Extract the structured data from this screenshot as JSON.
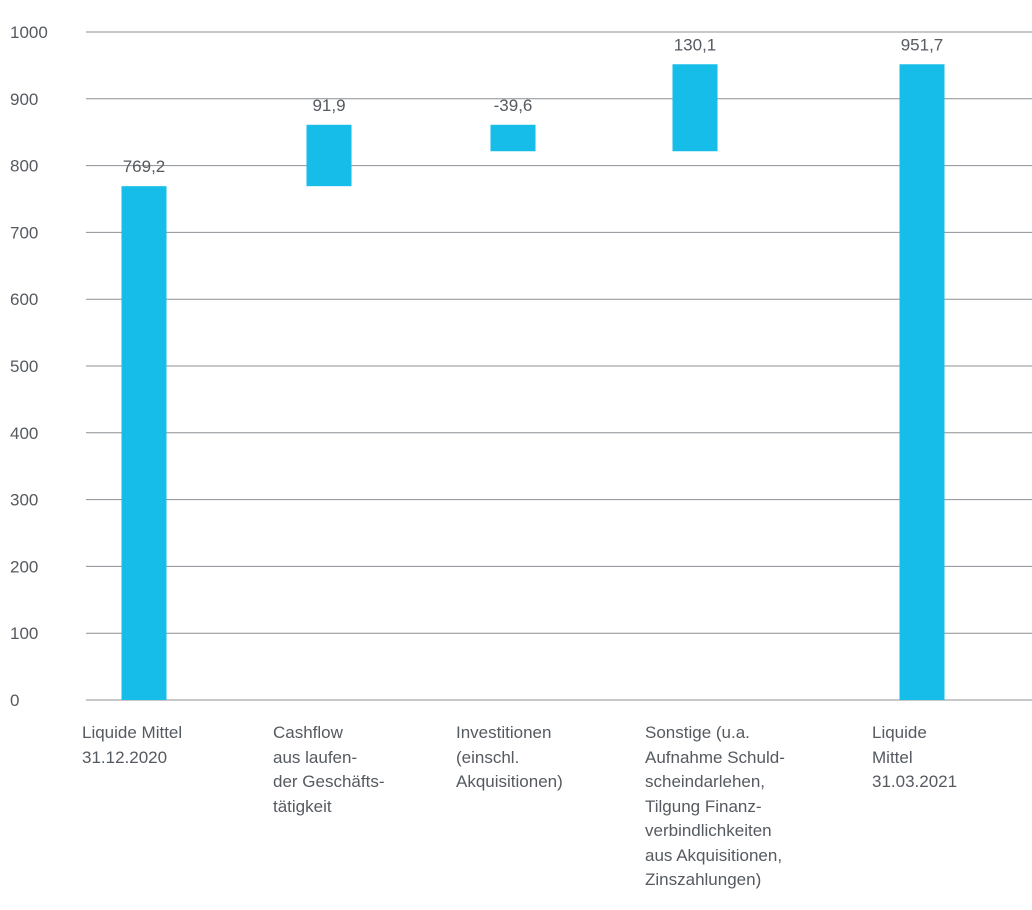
{
  "chart_data": {
    "type": "bar",
    "subtype": "waterfall",
    "ylim": [
      0,
      1000
    ],
    "yticks": [
      0,
      100,
      200,
      300,
      400,
      500,
      600,
      700,
      800,
      900,
      1000
    ],
    "grid": true,
    "bar_color": "#16bde8",
    "grid_color": "#8c9196",
    "text_color": "#555a60",
    "categories": [
      "Liquide Mittel\n31.12.2020",
      "Cashflow\naus laufen-\nder Geschäfts-\ntätigkeit",
      "Investitionen\n(einschl.\nAkquisitionen)",
      "Sonstige (u.a.\nAufnahme Schuld-\nscheindarlehen,\nTilgung Finanz-\nverbindlichkeiten\naus Akquisitionen,\nZinszahlungen)",
      "Liquide\nMittel\n31.03.2021"
    ],
    "bars": [
      {
        "kind": "total",
        "start": 0,
        "end": 769.2,
        "label": "769,2"
      },
      {
        "kind": "delta",
        "start": 769.2,
        "end": 861.1,
        "label": "91,9"
      },
      {
        "kind": "delta",
        "start": 861.1,
        "end": 821.5,
        "label": "-39,6"
      },
      {
        "kind": "delta",
        "start": 821.5,
        "end": 951.7,
        "label": "130,1"
      },
      {
        "kind": "total",
        "start": 0,
        "end": 951.7,
        "label": "951,7"
      }
    ]
  }
}
